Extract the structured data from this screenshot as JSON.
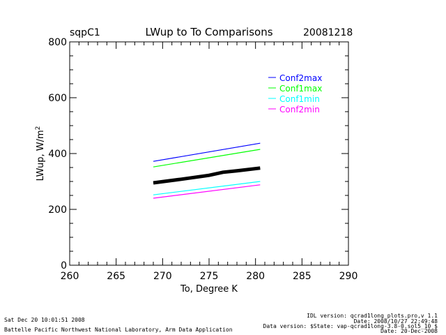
{
  "chart_data": {
    "type": "line",
    "site": "sqpC1",
    "title": "LWup to To Comparisons",
    "date": "20081218",
    "xlabel": "To, Degree K",
    "ylabel": "LWup, W/m",
    "ylabel_superscript": "2",
    "xlim": [
      260,
      290
    ],
    "ylim": [
      0,
      800
    ],
    "xticks": [
      260,
      265,
      270,
      275,
      280,
      285,
      290
    ],
    "yticks": [
      0,
      200,
      400,
      600,
      800
    ],
    "grid": false,
    "legend_position": "top-right",
    "series": [
      {
        "name": "Conf2max",
        "color": "#0000ff",
        "x": [
          269,
          280.5
        ],
        "y": [
          372,
          437
        ]
      },
      {
        "name": "Conf1max",
        "color": "#00ff00",
        "x": [
          269,
          280.5
        ],
        "y": [
          352,
          415
        ]
      },
      {
        "name": "",
        "color": "#000000",
        "x": [
          269,
          272,
          275,
          276.5,
          278,
          280.5
        ],
        "y": [
          295,
          308,
          322,
          333,
          338,
          348
        ]
      },
      {
        "name": "Conf1min",
        "color": "#00ffff",
        "x": [
          269,
          280.5
        ],
        "y": [
          252,
          300
        ]
      },
      {
        "name": "Conf2min",
        "color": "#ff00ff",
        "x": [
          269,
          280.5
        ],
        "y": [
          240,
          288
        ]
      }
    ]
  },
  "footer": {
    "timestamp": "Sat Dec 20 10:01:51 2008",
    "org": "Battelle Pacific Northwest National Laboratory, Arm Data Application",
    "idl_version": "IDL version: qcrad1long_plots.pro,v 1.1",
    "idl_date": "Date: 2008/10/27 22:49:48",
    "data_version": "Data version: $State: vap-qcrad1long-3.8-0.sol5_10 $",
    "data_date": "Date: 20-Dec-2008"
  }
}
